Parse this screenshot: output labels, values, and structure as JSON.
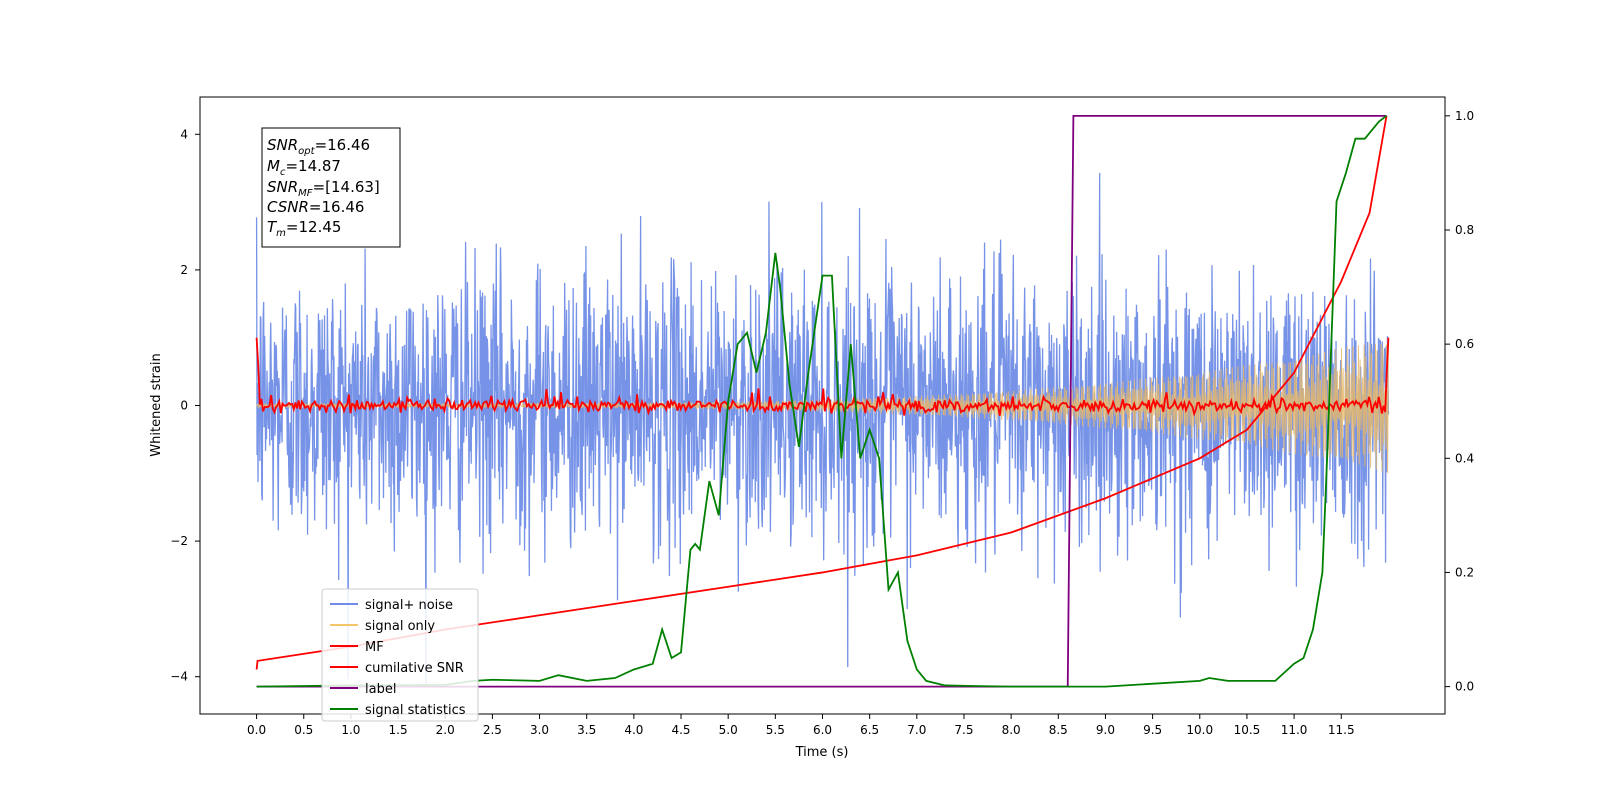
{
  "chart_data": {
    "type": "line",
    "xlabel": "Time (s)",
    "ylabel": "Whitened strain",
    "xlim": [
      -0.6,
      12.6
    ],
    "ylim": [
      -4.55,
      4.55
    ],
    "y2lim": [
      -0.048,
      1.033
    ],
    "xticks": [
      "0.0",
      "0.5",
      "1.0",
      "1.5",
      "2.0",
      "2.5",
      "3.0",
      "3.5",
      "4.0",
      "4.5",
      "5.0",
      "5.5",
      "6.0",
      "6.5",
      "7.0",
      "7.5",
      "8.0",
      "8.5",
      "9.0",
      "9.5",
      "10.0",
      "10.5",
      "11.0",
      "11.5"
    ],
    "yticks": [
      "4",
      "2",
      "0",
      "−2",
      "−4"
    ],
    "y2ticks": [
      "1.0",
      "0.8",
      "0.6",
      "0.4",
      "0.2",
      "0.0"
    ],
    "duration": 12,
    "annotation": {
      "lines": [
        {
          "base": "SNR",
          "sub": "opt",
          "value": "=16.46"
        },
        {
          "base": "M",
          "sub": "c",
          "value": "=14.87"
        },
        {
          "base": "SNR",
          "sub": "MF",
          "value": "=[14.63]"
        },
        {
          "base": "CSNR",
          "sub": "",
          "value": "=16.46"
        },
        {
          "base": "T",
          "sub": "m",
          "value": "=12.45"
        }
      ]
    },
    "legend": {
      "position": "lower-left",
      "entries": [
        {
          "label": "signal+ noise",
          "color": "#6f8de6"
        },
        {
          "label": "signal only",
          "color": "#f5c56a"
        },
        {
          "label": "MF",
          "color": "#ff0000"
        },
        {
          "label": "cumilative SNR",
          "color": "#ff0000"
        },
        {
          "label": "label",
          "color": "#7f007f"
        },
        {
          "label": "signal statistics",
          "color": "#008000"
        }
      ]
    },
    "series": [
      {
        "name": "signal+ noise",
        "axis": "left",
        "style": "noise",
        "color": "#6f8de6",
        "std": 1.0,
        "y_range": [
          -4.1,
          4.0
        ]
      },
      {
        "name": "signal only",
        "axis": "left",
        "style": "chirp",
        "color": "#e8b96a",
        "amplitude_start": 0.03,
        "amplitude_end": 1.0
      },
      {
        "name": "MF",
        "axis": "left",
        "style": "mf",
        "color": "#ff0000",
        "start": 1.0,
        "end": 1.0
      },
      {
        "name": "cumilative SNR",
        "axis": "right",
        "color": "#ff0000",
        "x": [
          0,
          0.01,
          1,
          2,
          3,
          4,
          5,
          6,
          7,
          8,
          9,
          10,
          10.5,
          11,
          11.5,
          11.8,
          11.98
        ],
        "y": [
          0.03,
          0.045,
          0.07,
          0.1,
          0.125,
          0.15,
          0.175,
          0.2,
          0.23,
          0.27,
          0.33,
          0.4,
          0.45,
          0.55,
          0.71,
          0.83,
          1.0
        ]
      },
      {
        "name": "label",
        "axis": "right",
        "color": "#7f007f",
        "x": [
          0,
          8.6,
          8.66,
          11.98
        ],
        "y": [
          0,
          0,
          1,
          1
        ]
      },
      {
        "name": "signal statistics",
        "axis": "right",
        "color": "#008000",
        "x": [
          0,
          1.0,
          2.0,
          2.3,
          2.5,
          3.0,
          3.2,
          3.5,
          3.8,
          4.0,
          4.2,
          4.3,
          4.4,
          4.5,
          4.6,
          4.65,
          4.7,
          4.8,
          4.9,
          5.0,
          5.1,
          5.2,
          5.3,
          5.4,
          5.5,
          5.55,
          5.65,
          5.75,
          5.85,
          6.0,
          6.1,
          6.2,
          6.3,
          6.4,
          6.5,
          6.6,
          6.7,
          6.8,
          6.9,
          7.0,
          7.1,
          7.3,
          7.6,
          8.0,
          9.0,
          10.0,
          10.1,
          10.3,
          10.5,
          10.8,
          11.0,
          11.1,
          11.2,
          11.3,
          11.35,
          11.45,
          11.55,
          11.65,
          11.75,
          11.9,
          11.98
        ],
        "y": [
          0,
          0.002,
          0.003,
          0.01,
          0.012,
          0.01,
          0.02,
          0.01,
          0.015,
          0.03,
          0.04,
          0.1,
          0.05,
          0.06,
          0.24,
          0.25,
          0.24,
          0.36,
          0.3,
          0.5,
          0.6,
          0.62,
          0.55,
          0.62,
          0.76,
          0.7,
          0.53,
          0.42,
          0.55,
          0.72,
          0.72,
          0.4,
          0.6,
          0.4,
          0.45,
          0.4,
          0.17,
          0.2,
          0.08,
          0.03,
          0.01,
          0.002,
          0.001,
          0.0,
          0.0,
          0.01,
          0.015,
          0.01,
          0.01,
          0.01,
          0.04,
          0.05,
          0.1,
          0.2,
          0.4,
          0.85,
          0.9,
          0.96,
          0.96,
          0.99,
          1.0
        ]
      }
    ]
  }
}
